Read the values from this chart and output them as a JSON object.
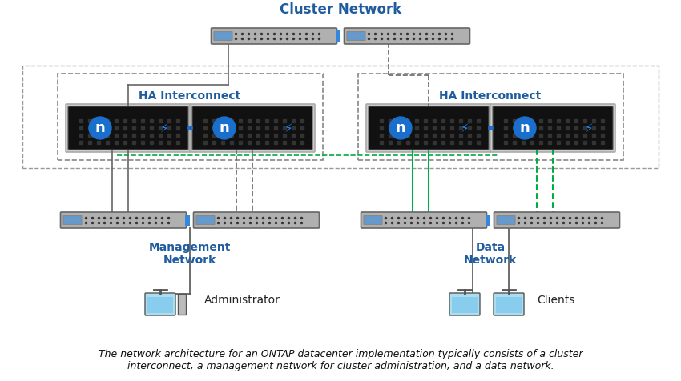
{
  "title": "Cluster Network",
  "ha_interconnect_left": "HA Interconnect",
  "ha_interconnect_right": "HA Interconnect",
  "mgmt_network": "Management\nNetwork",
  "data_network": "Data\nNetwork",
  "admin_label": "Administrator",
  "clients_label": "Clients",
  "caption": "The network architecture for an ONTAP datacenter implementation typically consists of a cluster\ninterconnect, a management network for cluster administration, and a data network.",
  "bg_color": "#ffffff",
  "blue_label_color": "#1F5C9E",
  "cluster_switch_color": "#b0b0b0",
  "mgmt_switch_color": "#b8b8b8",
  "node_bg_dark": "#1a1a1a",
  "node_border": "#888888",
  "ha_cable_color": "#1a6fcc",
  "green_solid": "#00aa44",
  "green_dashed": "#00aa44",
  "gray_dashed": "#666666",
  "gray_solid": "#666666",
  "dashed_box_color": "#888888"
}
